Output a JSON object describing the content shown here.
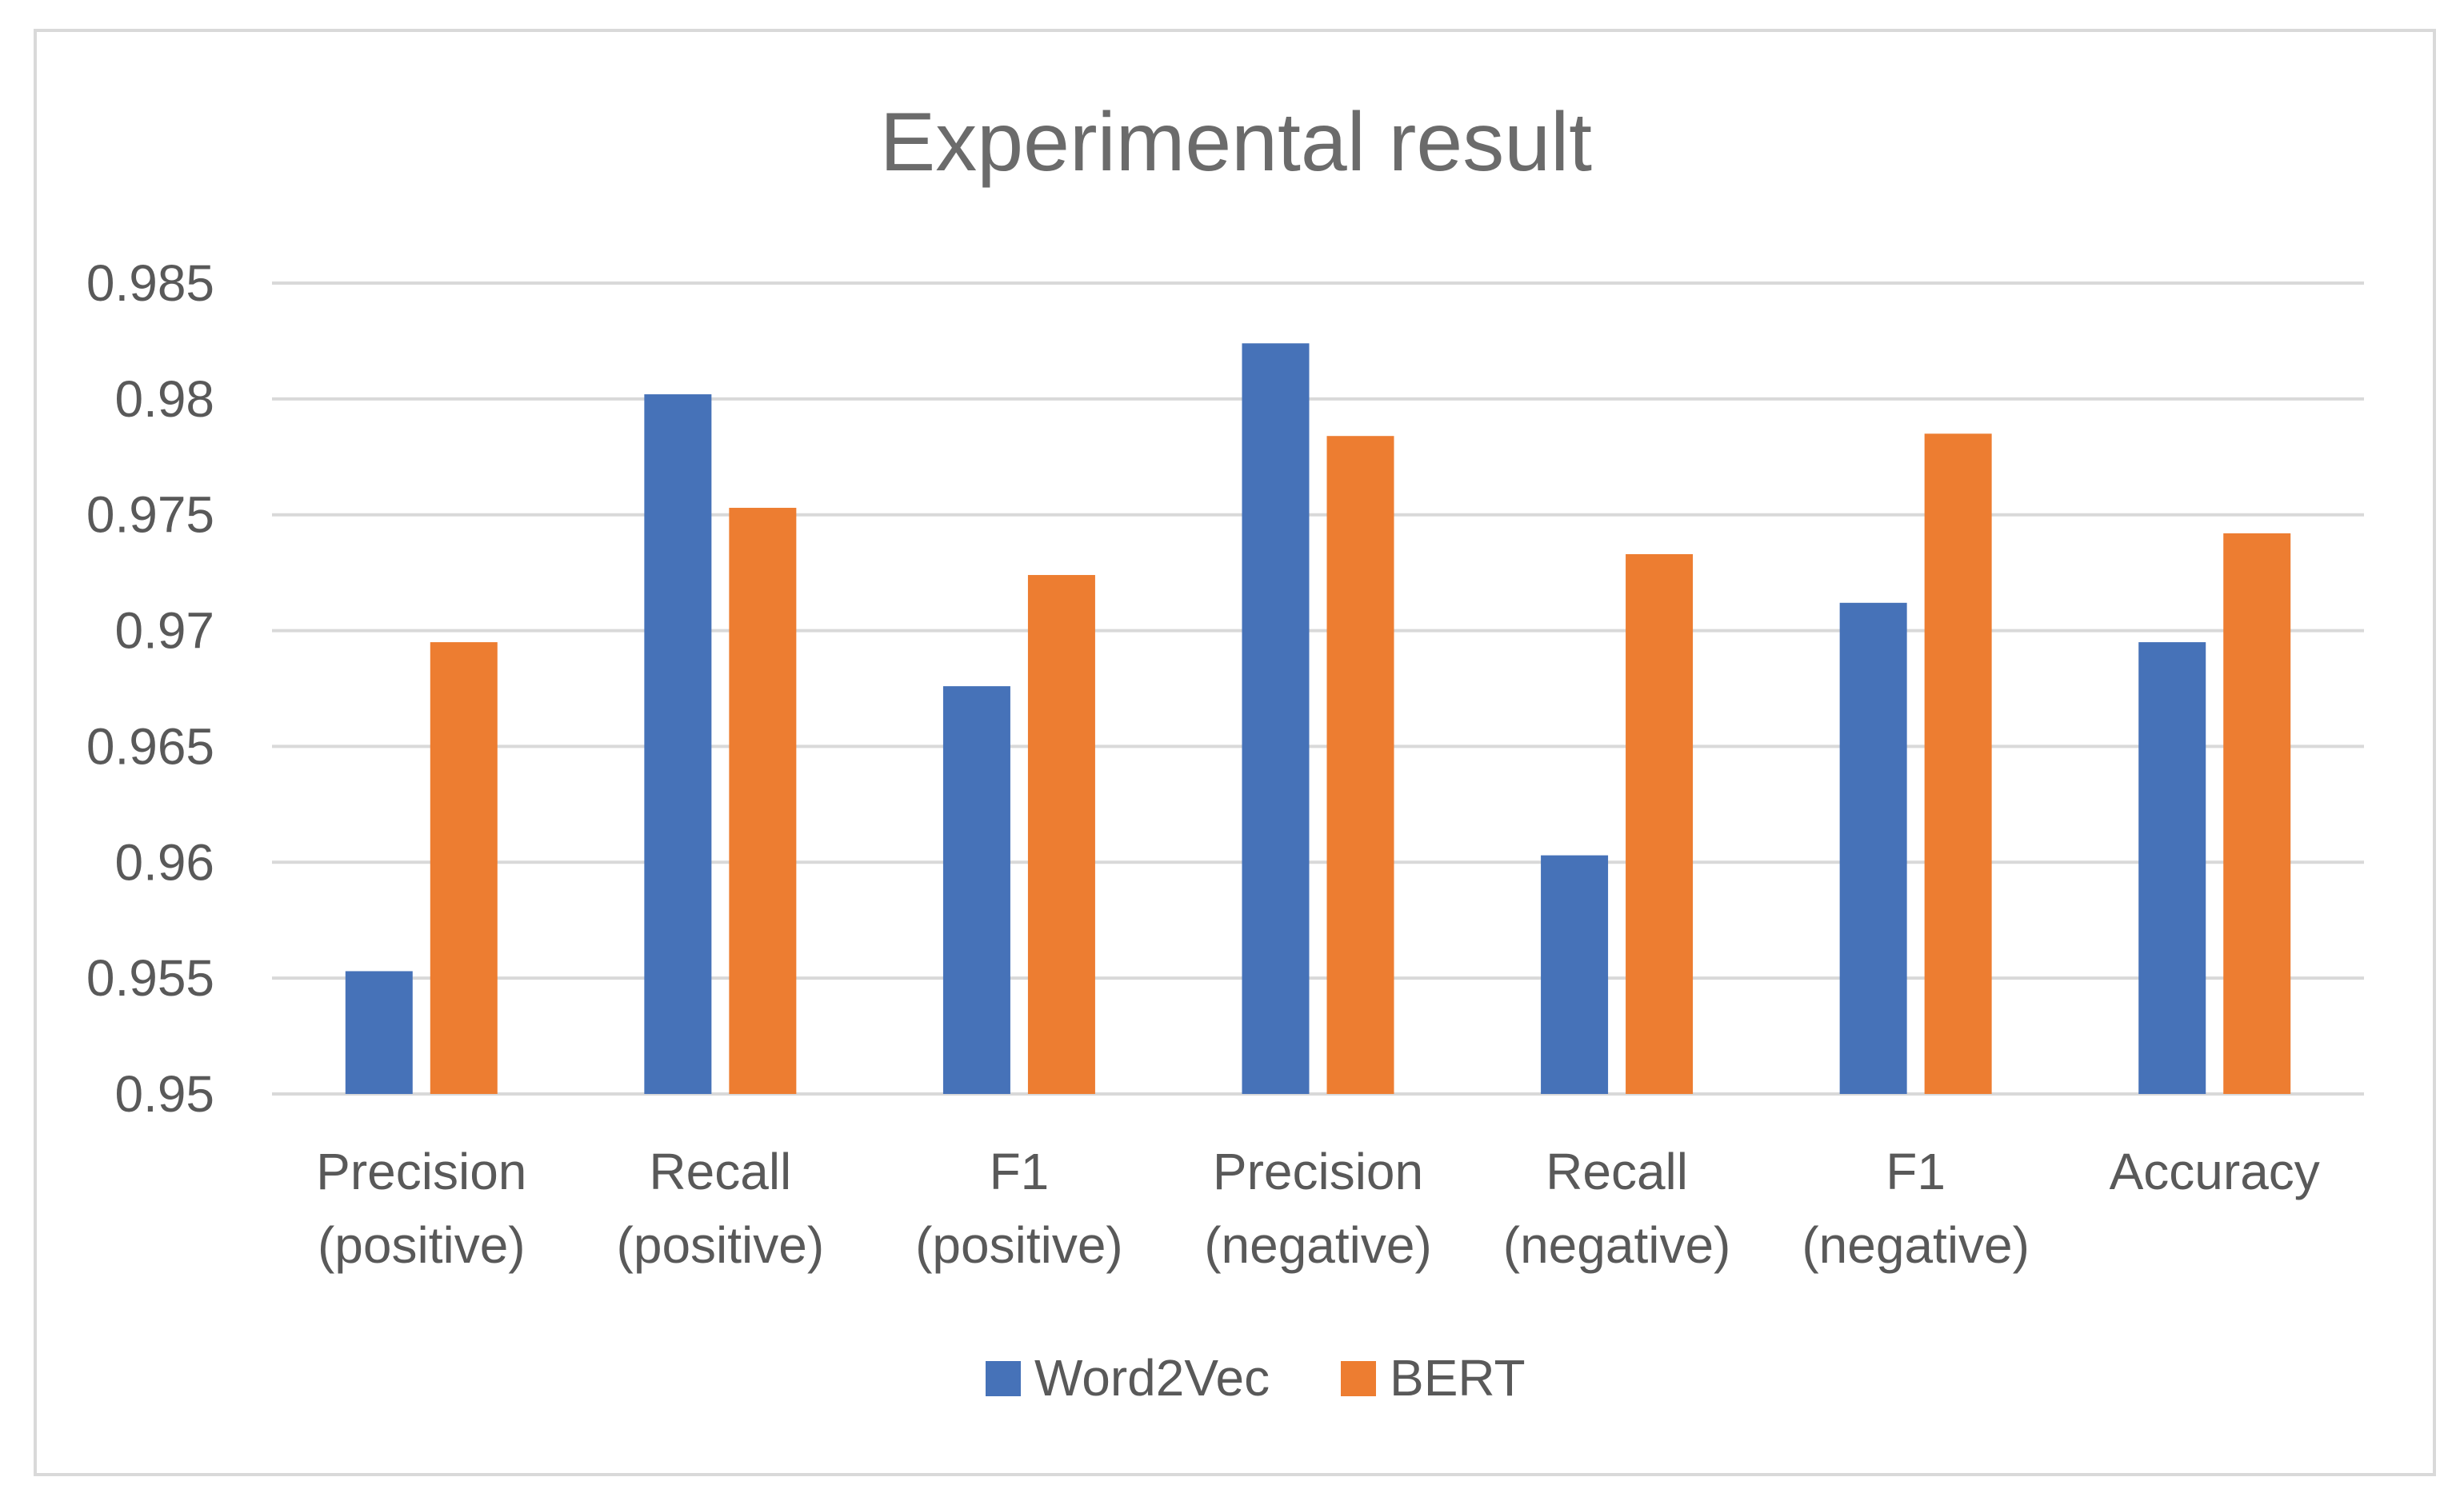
{
  "chart_data": {
    "type": "bar",
    "title": "Experimental result",
    "xlabel": "",
    "ylabel": "",
    "ylim": [
      0.95,
      0.985
    ],
    "yticks": [
      "0.95",
      "0.955",
      "0.96",
      "0.965",
      "0.97",
      "0.975",
      "0.98",
      "0.985"
    ],
    "ytick_values": [
      0.95,
      0.955,
      0.96,
      0.965,
      0.97,
      0.975,
      0.98,
      0.985
    ],
    "categories": [
      [
        "Precision",
        "(positive)"
      ],
      [
        "Recall",
        "(positive)"
      ],
      [
        "F1",
        "(positive)"
      ],
      [
        "Precision",
        "(negative)"
      ],
      [
        "Recall",
        "(negative)"
      ],
      [
        "F1",
        "(negative)"
      ],
      [
        "Accuracy"
      ]
    ],
    "series": [
      {
        "name": "Word2Vec",
        "color": "#4672B8",
        "values": [
          0.9553,
          0.9802,
          0.9676,
          0.9824,
          0.9603,
          0.9712,
          0.9695
        ]
      },
      {
        "name": "BERT",
        "color": "#ED7D31",
        "values": [
          0.9695,
          0.9753,
          0.9724,
          0.9784,
          0.9733,
          0.9785,
          0.9742
        ]
      }
    ],
    "grid": true,
    "legend_position": "bottom"
  },
  "colors": {
    "gridline": "#d9d9d9",
    "text": "#595959",
    "title": "#6b6b6b",
    "border": "#d9d9d9"
  }
}
